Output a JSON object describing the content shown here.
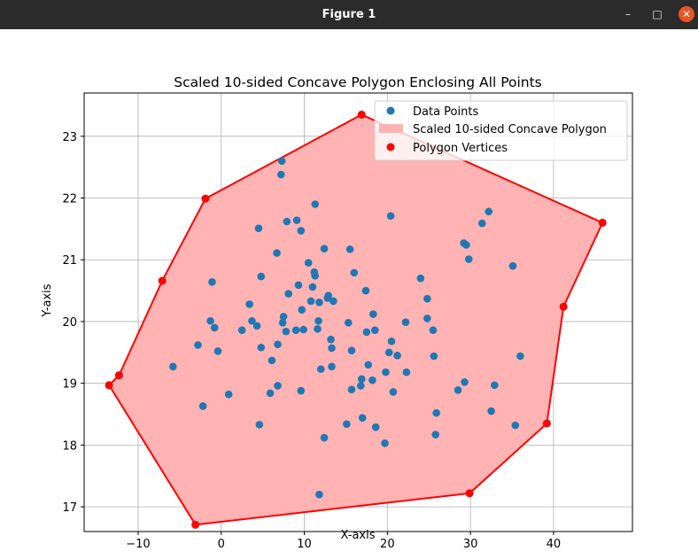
{
  "window": {
    "title": "Figure 1",
    "minimize_glyph": "–",
    "maximize_glyph": "□",
    "close_glyph": "✕",
    "close_color": "#e95420"
  },
  "chart_data": {
    "type": "scatter",
    "title": "Scaled 10-sided Concave Polygon Enclosing All Points",
    "xlabel": "X-axis",
    "ylabel": "Y-axis",
    "xlim": [
      -16.5,
      49.5
    ],
    "ylim": [
      16.6,
      23.7
    ],
    "xticks": [
      -10,
      0,
      10,
      20,
      30,
      40
    ],
    "xtick_labels": [
      "−10",
      "0",
      "10",
      "20",
      "30",
      "40"
    ],
    "yticks": [
      17,
      18,
      19,
      20,
      21,
      22,
      23
    ],
    "ytick_labels": [
      "17",
      "18",
      "19",
      "20",
      "21",
      "22",
      "23"
    ],
    "grid": true,
    "legend": {
      "location": "upper right",
      "entries": [
        "Data Points",
        "Scaled 10-sided Concave Polygon",
        "Polygon Vertices"
      ]
    },
    "colors": {
      "points": "#1f77b4",
      "polygon_fill": "#ffb3b3",
      "polygon_edge": "#ff0000",
      "vertices": "#ff0000"
    },
    "polygon_vertices": [
      [
        16.9,
        23.35
      ],
      [
        45.9,
        21.6
      ],
      [
        41.2,
        20.24
      ],
      [
        39.2,
        18.35
      ],
      [
        29.9,
        17.22
      ],
      [
        -3.1,
        16.71
      ],
      [
        -13.5,
        18.97
      ],
      [
        -12.3,
        19.13
      ],
      [
        -7.1,
        20.66
      ],
      [
        -1.9,
        21.99
      ]
    ],
    "points": [
      [
        7.3,
        22.6
      ],
      [
        7.2,
        22.38
      ],
      [
        11.3,
        21.9
      ],
      [
        20.4,
        21.71
      ],
      [
        32.2,
        21.78
      ],
      [
        31.4,
        21.59
      ],
      [
        4.5,
        21.51
      ],
      [
        7.9,
        21.62
      ],
      [
        9.1,
        21.64
      ],
      [
        9.6,
        21.47
      ],
      [
        29.2,
        21.27
      ],
      [
        29.5,
        21.24
      ],
      [
        12.4,
        21.18
      ],
      [
        15.5,
        21.17
      ],
      [
        6.7,
        21.11
      ],
      [
        29.8,
        21.01
      ],
      [
        10.5,
        20.95
      ],
      [
        35.1,
        20.9
      ],
      [
        11.2,
        20.8
      ],
      [
        11.3,
        20.74
      ],
      [
        16.0,
        20.79
      ],
      [
        4.8,
        20.73
      ],
      [
        24.0,
        20.7
      ],
      [
        9.3,
        20.59
      ],
      [
        11.0,
        20.56
      ],
      [
        17.4,
        20.5
      ],
      [
        -1.1,
        20.64
      ],
      [
        8.1,
        20.45
      ],
      [
        12.8,
        20.38
      ],
      [
        12.9,
        20.42
      ],
      [
        24.8,
        20.37
      ],
      [
        10.8,
        20.33
      ],
      [
        11.8,
        20.31
      ],
      [
        13.5,
        20.33
      ],
      [
        3.4,
        20.28
      ],
      [
        9.7,
        20.19
      ],
      [
        7.5,
        20.08
      ],
      [
        18.3,
        20.12
      ],
      [
        3.7,
        20.01
      ],
      [
        -1.3,
        20.01
      ],
      [
        4.3,
        19.93
      ],
      [
        7.4,
        19.98
      ],
      [
        11.7,
        20.01
      ],
      [
        15.3,
        19.98
      ],
      [
        22.2,
        19.99
      ],
      [
        24.8,
        20.05
      ],
      [
        -0.8,
        19.9
      ],
      [
        2.5,
        19.86
      ],
      [
        7.8,
        19.84
      ],
      [
        9.0,
        19.86
      ],
      [
        9.9,
        19.87
      ],
      [
        11.6,
        19.88
      ],
      [
        17.5,
        19.83
      ],
      [
        18.5,
        19.86
      ],
      [
        25.5,
        19.86
      ],
      [
        13.2,
        19.71
      ],
      [
        20.5,
        19.68
      ],
      [
        -2.8,
        19.62
      ],
      [
        6.8,
        19.63
      ],
      [
        4.8,
        19.58
      ],
      [
        13.3,
        19.57
      ],
      [
        15.7,
        19.53
      ],
      [
        -0.4,
        19.52
      ],
      [
        20.2,
        19.5
      ],
      [
        21.2,
        19.45
      ],
      [
        25.6,
        19.44
      ],
      [
        36.0,
        19.44
      ],
      [
        6.1,
        19.37
      ],
      [
        -5.8,
        19.27
      ],
      [
        12.0,
        19.23
      ],
      [
        13.3,
        19.27
      ],
      [
        17.7,
        19.3
      ],
      [
        19.8,
        19.18
      ],
      [
        22.3,
        19.18
      ],
      [
        16.9,
        19.07
      ],
      [
        18.2,
        19.05
      ],
      [
        29.3,
        19.02
      ],
      [
        15.7,
        18.9
      ],
      [
        16.8,
        18.96
      ],
      [
        32.9,
        18.97
      ],
      [
        6.8,
        18.96
      ],
      [
        9.6,
        18.88
      ],
      [
        20.7,
        18.86
      ],
      [
        28.5,
        18.89
      ],
      [
        5.9,
        18.84
      ],
      [
        0.9,
        18.82
      ],
      [
        -2.2,
        18.63
      ],
      [
        25.9,
        18.52
      ],
      [
        32.5,
        18.55
      ],
      [
        17.0,
        18.44
      ],
      [
        4.6,
        18.33
      ],
      [
        15.1,
        18.34
      ],
      [
        18.6,
        18.29
      ],
      [
        35.4,
        18.32
      ],
      [
        25.8,
        18.17
      ],
      [
        12.4,
        18.12
      ],
      [
        19.7,
        18.03
      ],
      [
        11.8,
        17.2
      ]
    ]
  }
}
